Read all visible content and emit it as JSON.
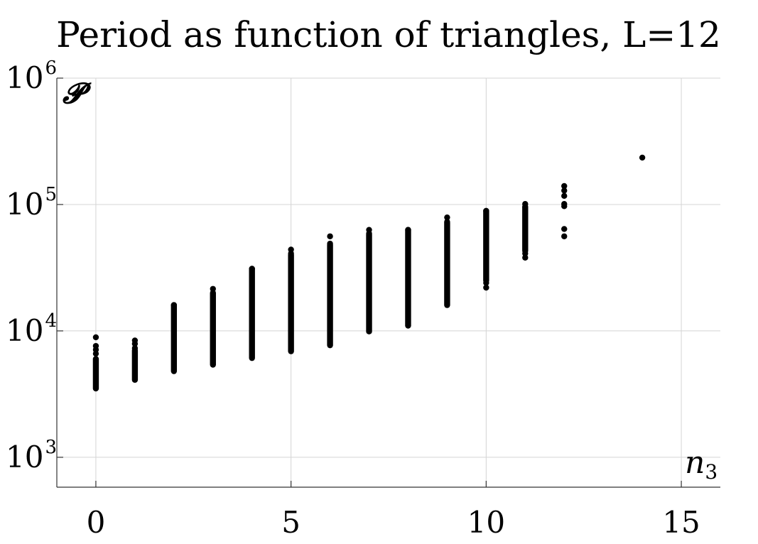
{
  "chart_data": {
    "type": "scatter",
    "title": "Period as function of triangles, L=12",
    "xlabel": "n",
    "xlabel_subscript": "3",
    "ylabel": "𝓟",
    "x_scale": "linear",
    "y_scale": "log",
    "xlim": [
      -1,
      16
    ],
    "ylim": [
      580,
      1000000
    ],
    "x_ticks": [
      {
        "value": 0,
        "label": "0"
      },
      {
        "value": 5,
        "label": "5"
      },
      {
        "value": 10,
        "label": "10"
      },
      {
        "value": 15,
        "label": "15"
      }
    ],
    "y_ticks": [
      {
        "value": 1000,
        "base": "10",
        "exp": "3"
      },
      {
        "value": 10000,
        "base": "10",
        "exp": "4"
      },
      {
        "value": 100000,
        "base": "10",
        "exp": "5"
      },
      {
        "value": 1000000,
        "base": "10",
        "exp": "6"
      }
    ],
    "grid": true,
    "marker_color": "#000000",
    "series": [
      {
        "ranges": [
          {
            "x": 0,
            "y_min": 3500,
            "y_max": 6000
          },
          {
            "x": 1,
            "y_min": 4100,
            "y_max": 7000
          },
          {
            "x": 2,
            "y_min": 4800,
            "y_max": 16000
          },
          {
            "x": 3,
            "y_min": 5400,
            "y_max": 20000
          },
          {
            "x": 4,
            "y_min": 6100,
            "y_max": 31000
          },
          {
            "x": 5,
            "y_min": 6900,
            "y_max": 40000
          },
          {
            "x": 6,
            "y_min": 7700,
            "y_max": 48000
          },
          {
            "x": 7,
            "y_min": 9900,
            "y_max": 58000
          },
          {
            "x": 8,
            "y_min": 11000,
            "y_max": 63000
          },
          {
            "x": 9,
            "y_min": 16000,
            "y_max": 72000
          },
          {
            "x": 10,
            "y_min": 25000,
            "y_max": 89000
          },
          {
            "x": 11,
            "y_min": 43000,
            "y_max": 95000
          }
        ],
        "points": [
          {
            "x": 0,
            "y": 8900
          },
          {
            "x": 0,
            "y": 7600
          },
          {
            "x": 0,
            "y": 7100
          },
          {
            "x": 0,
            "y": 6600
          },
          {
            "x": 1,
            "y": 8400
          },
          {
            "x": 1,
            "y": 7900
          },
          {
            "x": 1,
            "y": 7300
          },
          {
            "x": 2,
            "y": 16000
          },
          {
            "x": 3,
            "y": 21500
          },
          {
            "x": 4,
            "y": 31000
          },
          {
            "x": 5,
            "y": 44000
          },
          {
            "x": 5,
            "y": 41000
          },
          {
            "x": 6,
            "y": 56000
          },
          {
            "x": 6,
            "y": 49000
          },
          {
            "x": 7,
            "y": 63000
          },
          {
            "x": 7,
            "y": 59000
          },
          {
            "x": 8,
            "y": 63000
          },
          {
            "x": 9,
            "y": 79000
          },
          {
            "x": 9,
            "y": 73000
          },
          {
            "x": 10,
            "y": 89000
          },
          {
            "x": 10,
            "y": 24000
          },
          {
            "x": 10,
            "y": 22000
          },
          {
            "x": 11,
            "y": 101000
          },
          {
            "x": 11,
            "y": 96000
          },
          {
            "x": 11,
            "y": 41000
          },
          {
            "x": 11,
            "y": 38000
          },
          {
            "x": 12,
            "y": 140000
          },
          {
            "x": 12,
            "y": 129000
          },
          {
            "x": 12,
            "y": 117000
          },
          {
            "x": 12,
            "y": 101000
          },
          {
            "x": 12,
            "y": 97000
          },
          {
            "x": 12,
            "y": 64000
          },
          {
            "x": 12,
            "y": 56000
          },
          {
            "x": 14,
            "y": 235000
          }
        ]
      }
    ]
  }
}
